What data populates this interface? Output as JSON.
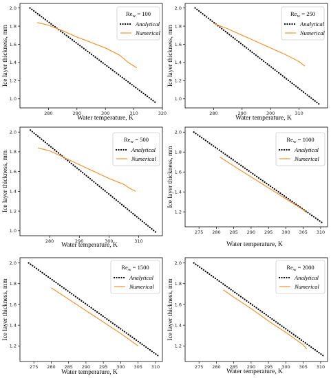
{
  "chart_data": [
    {
      "type": "line",
      "legend_title": "Re",
      "legend_sub": "w",
      "legend_value": "= 100",
      "xlabel": "Water temperature, K",
      "ylabel": "Ice layer thickness, mm",
      "xlim": [
        270,
        320
      ],
      "ylim": [
        0.9,
        2.05
      ],
      "xticks": [
        280,
        290,
        300,
        310,
        320
      ],
      "yticks": [
        1.0,
        1.2,
        1.4,
        1.6,
        1.8,
        2.0
      ],
      "legend_position": "top-right",
      "series": [
        {
          "name": "Analytical",
          "style": "dotted",
          "color": "#000000",
          "x": [
            273.5,
            318
          ],
          "y": [
            2.0,
            0.95
          ]
        },
        {
          "name": "Numerical",
          "style": "solid",
          "color": "#f5922f",
          "x": [
            276,
            280,
            285,
            290,
            295,
            300,
            305,
            308,
            311
          ],
          "y": [
            1.84,
            1.81,
            1.75,
            1.68,
            1.62,
            1.56,
            1.48,
            1.4,
            1.34
          ]
        }
      ]
    },
    {
      "type": "line",
      "legend_title": "Re",
      "legend_sub": "w",
      "legend_value": "= 250",
      "xlabel": "Water temperature, K",
      "ylabel": "Ice layer thickness, mm",
      "xlim": [
        270,
        320
      ],
      "ylim": [
        0.9,
        2.05
      ],
      "xticks": [
        280,
        290,
        300,
        310
      ],
      "yticks": [
        1.0,
        1.2,
        1.4,
        1.6,
        1.8,
        2.0
      ],
      "legend_position": "top-right",
      "series": [
        {
          "name": "Analytical",
          "style": "dotted",
          "color": "#000000",
          "x": [
            273.5,
            317.5
          ],
          "y": [
            2.0,
            0.93
          ]
        },
        {
          "name": "Numerical",
          "style": "solid",
          "color": "#f5922f",
          "x": [
            280,
            285,
            290,
            295,
            300,
            305,
            310,
            312
          ],
          "y": [
            1.83,
            1.77,
            1.7,
            1.63,
            1.56,
            1.49,
            1.41,
            1.36
          ]
        }
      ]
    },
    {
      "type": "line",
      "legend_title": "Re",
      "legend_sub": "w",
      "legend_value": "= 500",
      "xlabel": "Water temperature, K",
      "ylabel": "Ice layer thickness, mm",
      "xlim": [
        270,
        318
      ],
      "ylim": [
        0.95,
        2.05
      ],
      "xticks": [
        280,
        290,
        300,
        310
      ],
      "yticks": [
        1.0,
        1.2,
        1.4,
        1.6,
        1.8,
        2.0
      ],
      "legend_position": "top-right",
      "series": [
        {
          "name": "Analytical",
          "style": "dotted",
          "color": "#000000",
          "x": [
            273.5,
            316
          ],
          "y": [
            2.02,
            0.98
          ]
        },
        {
          "name": "Numerical",
          "style": "solid",
          "color": "#f5922f",
          "x": [
            276,
            280,
            285,
            290,
            295,
            300,
            305,
            307,
            309
          ],
          "y": [
            1.84,
            1.81,
            1.74,
            1.67,
            1.6,
            1.53,
            1.47,
            1.43,
            1.4
          ]
        }
      ]
    },
    {
      "type": "line",
      "legend_title": "Re",
      "legend_sub": "w",
      "legend_value": "= 1000",
      "xlabel": "Water temperature, K",
      "ylabel": "Ice layer thickness, mm",
      "xlim": [
        271,
        312
      ],
      "ylim": [
        1.05,
        2.05
      ],
      "xticks": [
        275,
        280,
        285,
        290,
        295,
        300,
        305,
        310
      ],
      "yticks": [
        1.2,
        1.4,
        1.6,
        1.8,
        2.0
      ],
      "legend_position": "top-right",
      "series": [
        {
          "name": "Analytical",
          "style": "dotted",
          "color": "#000000",
          "x": [
            273.5,
            310.5
          ],
          "y": [
            2.0,
            1.09
          ]
        },
        {
          "name": "Numerical",
          "style": "solid",
          "color": "#f5922f",
          "x": [
            281,
            285,
            290,
            295,
            300,
            305,
            306
          ],
          "y": [
            1.75,
            1.66,
            1.55,
            1.44,
            1.33,
            1.22,
            1.19
          ]
        }
      ]
    },
    {
      "type": "line",
      "legend_title": "Re",
      "legend_sub": "w",
      "legend_value": "= 1500",
      "xlabel": "Water temperature, K",
      "ylabel": "Ice layer thickness, mm",
      "xlim": [
        271,
        312
      ],
      "ylim": [
        1.05,
        2.05
      ],
      "xticks": [
        275,
        280,
        285,
        290,
        295,
        300,
        305,
        310
      ],
      "yticks": [
        1.2,
        1.4,
        1.6,
        1.8,
        2.0
      ],
      "legend_position": "top-right",
      "series": [
        {
          "name": "Analytical",
          "style": "dotted",
          "color": "#000000",
          "x": [
            273.5,
            311
          ],
          "y": [
            2.0,
            1.1
          ]
        },
        {
          "name": "Numerical",
          "style": "solid",
          "color": "#f5922f",
          "x": [
            280,
            285,
            290,
            295,
            300,
            305
          ],
          "y": [
            1.76,
            1.65,
            1.54,
            1.43,
            1.32,
            1.2
          ]
        }
      ]
    },
    {
      "type": "line",
      "legend_title": "Re",
      "legend_sub": "w",
      "legend_value": "= 2000",
      "xlabel": "Water temperature, K",
      "ylabel": "Ice layer thickness, mm",
      "xlim": [
        271,
        312
      ],
      "ylim": [
        1.05,
        2.05
      ],
      "xticks": [
        275,
        280,
        285,
        290,
        295,
        300,
        305,
        310
      ],
      "yticks": [
        1.2,
        1.4,
        1.6,
        1.8,
        2.0
      ],
      "legend_position": "top-right",
      "series": [
        {
          "name": "Analytical",
          "style": "dotted",
          "color": "#000000",
          "x": [
            273.5,
            311
          ],
          "y": [
            2.0,
            1.1
          ]
        },
        {
          "name": "Numerical",
          "style": "solid",
          "color": "#f5922f",
          "x": [
            282,
            285,
            290,
            295,
            300,
            305,
            306
          ],
          "y": [
            1.74,
            1.67,
            1.56,
            1.44,
            1.33,
            1.21,
            1.17
          ]
        }
      ]
    }
  ]
}
